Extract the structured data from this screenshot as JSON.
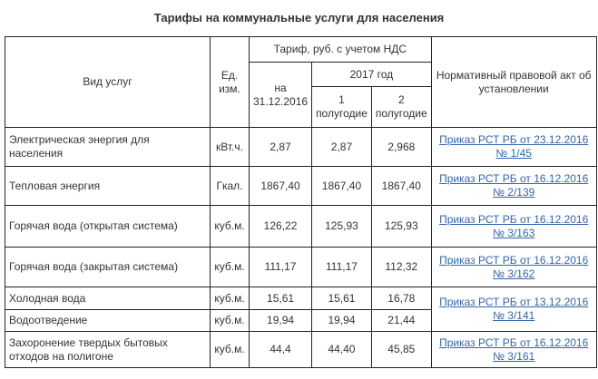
{
  "title": "Тарифы на коммунальные услуги для населения",
  "header": {
    "service": "Вид услуг",
    "unit": "Ед. изм.",
    "tariff_group": "Тариф, руб. с учетом НДС",
    "as_of": "на 31.12.2016",
    "year_group": "2017 год",
    "half1": "1 полугодие",
    "half2": "2 полугодие",
    "act": "Нормативный правовой акт об установлении"
  },
  "rows": [
    {
      "service": "Электрическая энергия для населения",
      "unit": "кВт.ч.",
      "as_of": "2,87",
      "h1": "2,87",
      "h2": "2,968",
      "act": "Приказ РСТ РБ от 23.12.2016 № 1/45"
    },
    {
      "service": "Тепловая энергия",
      "unit": "Гкал.",
      "as_of": "1867,40",
      "h1": "1867,40",
      "h2": "1867,40",
      "act": "Приказ РСТ РБ от 16.12.2016 № 2/139"
    },
    {
      "service": "Горячая вода (открытая система)",
      "unit": "куб.м.",
      "as_of": "126,22",
      "h1": "125,93",
      "h2": "125,93",
      "act": "Приказ РСТ РБ от 16.12.2016 № 3/163"
    },
    {
      "service": "Горячая вода (закрытая система)",
      "unit": "куб.м.",
      "as_of": "111,17",
      "h1": "111,17",
      "h2": "112,32",
      "act": "Приказ РСТ РБ от 16.12.2016 № 3/162"
    },
    {
      "service": "Холодная вода",
      "unit": "куб.м.",
      "as_of": "15,61",
      "h1": "15,61",
      "h2": "16,78",
      "act": "Приказ РСТ РБ от 13.12.2016 № 3/141"
    },
    {
      "service": "Водоотведение",
      "unit": "куб.м.",
      "as_of": "19,94",
      "h1": "19,94",
      "h2": "21,44",
      "act": null
    },
    {
      "service": "Захоронение твердых бытовых отходов на полигоне",
      "unit": "куб.м.",
      "as_of": "44,4",
      "h1": "44,40",
      "h2": "45,85",
      "act": "Приказ РСТ РБ от 16.12.2016 № 3/161"
    }
  ]
}
